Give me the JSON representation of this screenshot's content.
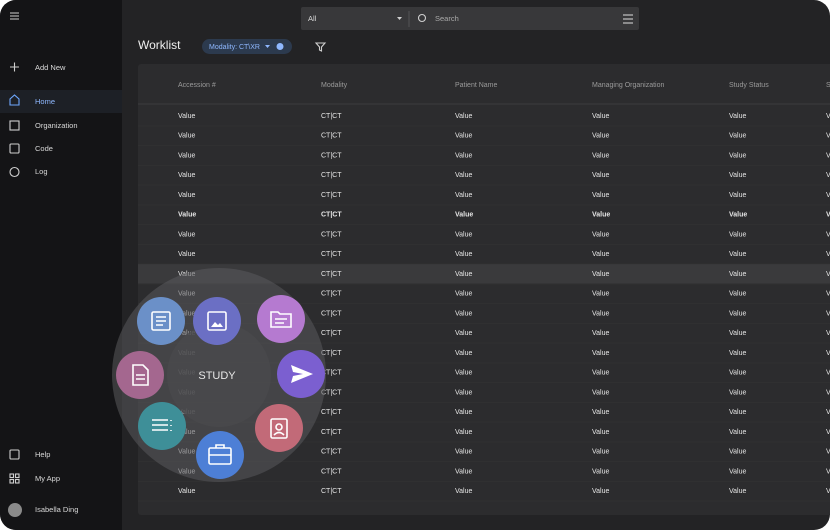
{
  "sidebar": {
    "add": "Add New",
    "nav": [
      "Home",
      "Organization",
      "Code",
      "Log"
    ],
    "bottom": [
      "Help",
      "My App"
    ],
    "user": "Isabella Ding"
  },
  "topbar": {
    "filter": "All",
    "search": "Search"
  },
  "header": {
    "title": "Worklist",
    "chip": "Modality: CT\\XR"
  },
  "table": {
    "columns": [
      "Accession #",
      "Modality",
      "Patient Name",
      "Managing Organization",
      "Study Status",
      "S"
    ],
    "rows": [
      [
        "Value",
        "CT|CT",
        "Value",
        "Value",
        "Value",
        "V"
      ],
      [
        "Value",
        "CT|CT",
        "Value",
        "Value",
        "Value",
        "V"
      ],
      [
        "Value",
        "CT|CT",
        "Value",
        "Value",
        "Value",
        "V"
      ],
      [
        "Value",
        "CT|CT",
        "Value",
        "Value",
        "Value",
        "V"
      ],
      [
        "Value",
        "CT|CT",
        "Value",
        "Value",
        "Value",
        "V"
      ],
      [
        "Value",
        "CT|CT",
        "Value",
        "Value",
        "Value",
        "V"
      ],
      [
        "Value",
        "CT|CT",
        "Value",
        "Value",
        "Value",
        "V"
      ],
      [
        "Value",
        "CT|CT",
        "Value",
        "Value",
        "Value",
        "V"
      ],
      [
        "Value",
        "CT|CT",
        "Value",
        "Value",
        "Value",
        "V"
      ],
      [
        "Value",
        "CT|CT",
        "Value",
        "Value",
        "Value",
        "V"
      ],
      [
        "Value",
        "CT|CT",
        "Value",
        "Value",
        "Value",
        "V"
      ],
      [
        "Value",
        "CT|CT",
        "Value",
        "Value",
        "Value",
        "V"
      ],
      [
        "Value",
        "CT|CT",
        "Value",
        "Value",
        "Value",
        "V"
      ],
      [
        "Value",
        "CT|CT",
        "Value",
        "Value",
        "Value",
        "V"
      ],
      [
        "Value",
        "CT|CT",
        "Value",
        "Value",
        "Value",
        "V"
      ],
      [
        "Value",
        "CT|CT",
        "Value",
        "Value",
        "Value",
        "V"
      ],
      [
        "Value",
        "CT|CT",
        "Value",
        "Value",
        "Value",
        "V"
      ],
      [
        "Value",
        "CT|CT",
        "Value",
        "Value",
        "Value",
        "V"
      ],
      [
        "Value",
        "CT|CT",
        "Value",
        "Value",
        "Value",
        "V"
      ],
      [
        "Value",
        "CT|CT",
        "Value",
        "Value",
        "Value",
        "V"
      ]
    ],
    "bold_row": 5,
    "hover_row": 8
  },
  "radial_menu": {
    "label": "STUDY"
  }
}
